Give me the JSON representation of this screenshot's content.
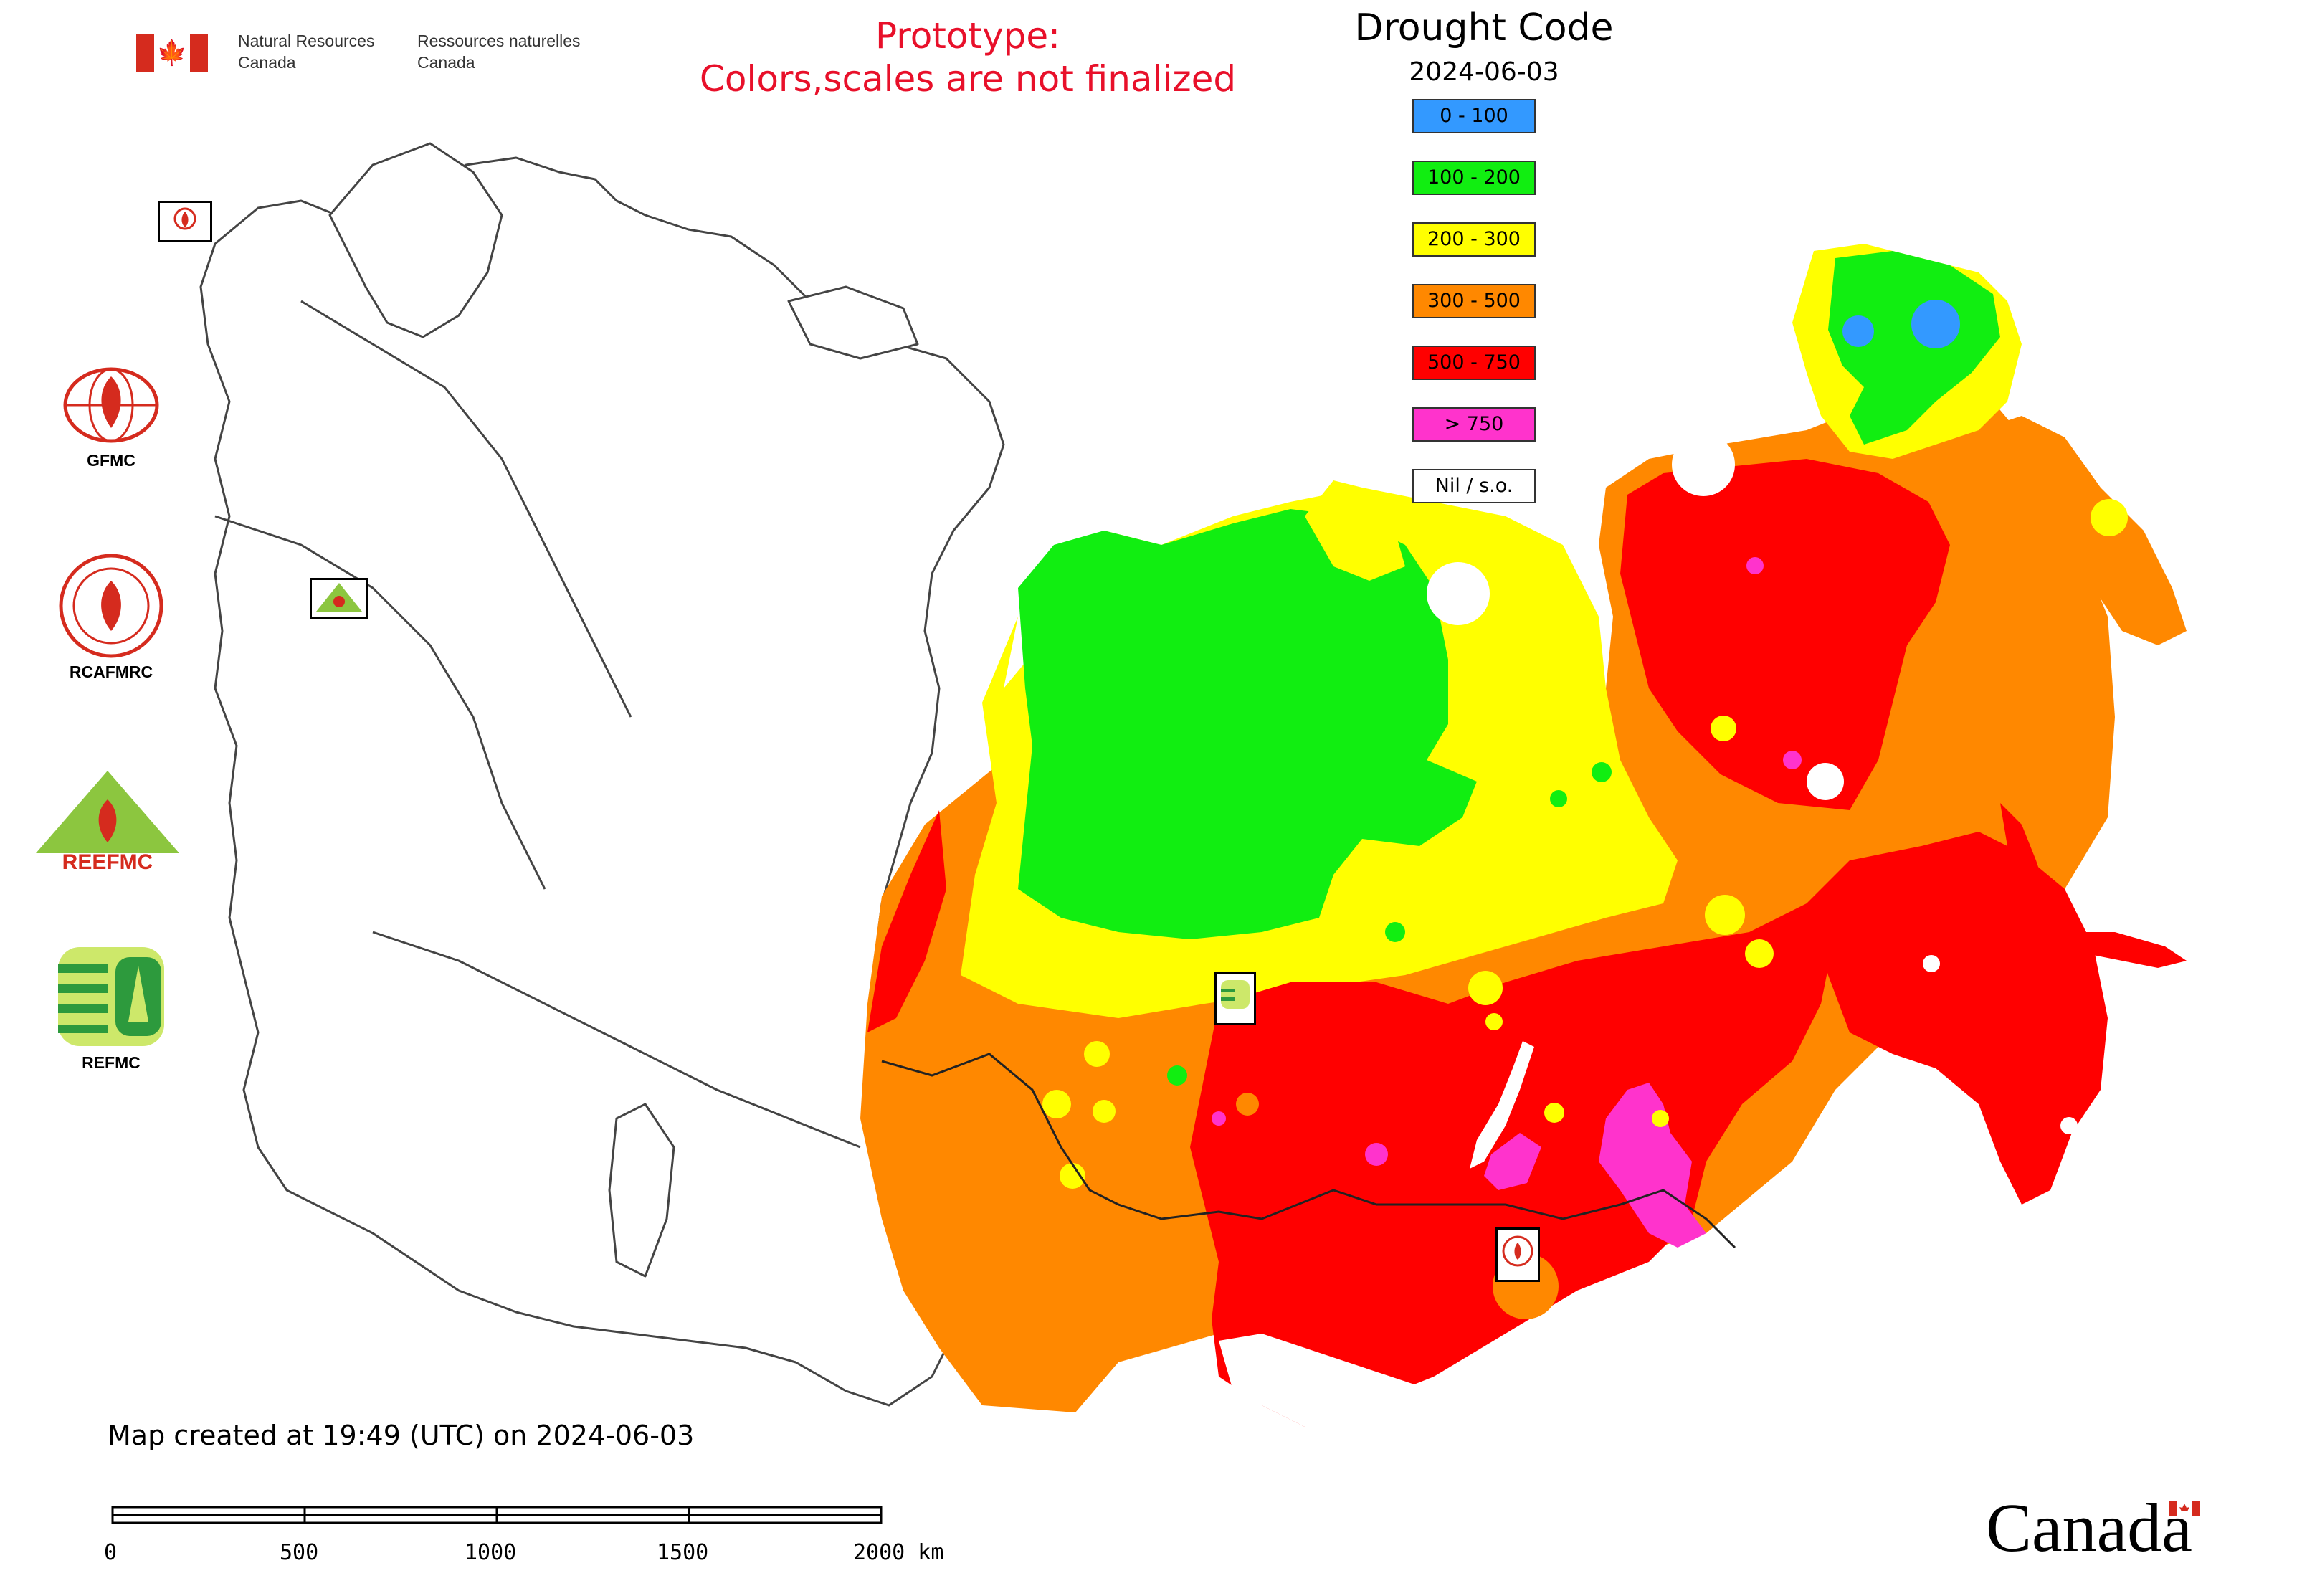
{
  "header": {
    "department_en_line1": "Natural Resources",
    "department_en_line2": "Canada",
    "department_fr_line1": "Ressources naturelles",
    "department_fr_line2": "Canada",
    "prototype_line1": "Prototype:",
    "prototype_line2": "Colors,scales are not finalized"
  },
  "legend": {
    "title": "Drought Code",
    "date": "2024-06-03",
    "classes": [
      {
        "label": "0 - 100",
        "color": "#3399ff"
      },
      {
        "label": "100 - 200",
        "color": "#11ee11"
      },
      {
        "label": "200 - 300",
        "color": "#ffff00"
      },
      {
        "label": "300 - 500",
        "color": "#ff8800"
      },
      {
        "label": "500 - 750",
        "color": "#ff0000"
      },
      {
        "label": "> 750",
        "color": "#ff33cc"
      },
      {
        "label": "Nil / s.o.",
        "color": "#ffffff"
      }
    ]
  },
  "logos": [
    {
      "label": "GFMC",
      "icon": "gfmc-globe-flame-logo"
    },
    {
      "label": "RCAFMRC",
      "icon": "rcafmrc-seal-logo"
    },
    {
      "label": "",
      "icon": "reefmc-triangle-logo",
      "wordmark": "REEFMC"
    },
    {
      "label": "REFMC",
      "icon": "refmc-sigma-logo"
    }
  ],
  "footer": {
    "created": "Map created at 19:49 (UTC) on 2024-06-03",
    "watermark": "Canada"
  },
  "scale_bar": {
    "ticks": [
      "0",
      "500",
      "1000",
      "1500",
      "2000 km"
    ]
  },
  "colors": {
    "prototype_text": "#e8102a",
    "flag_red": "#d52b1e",
    "boundary": "#444444"
  }
}
